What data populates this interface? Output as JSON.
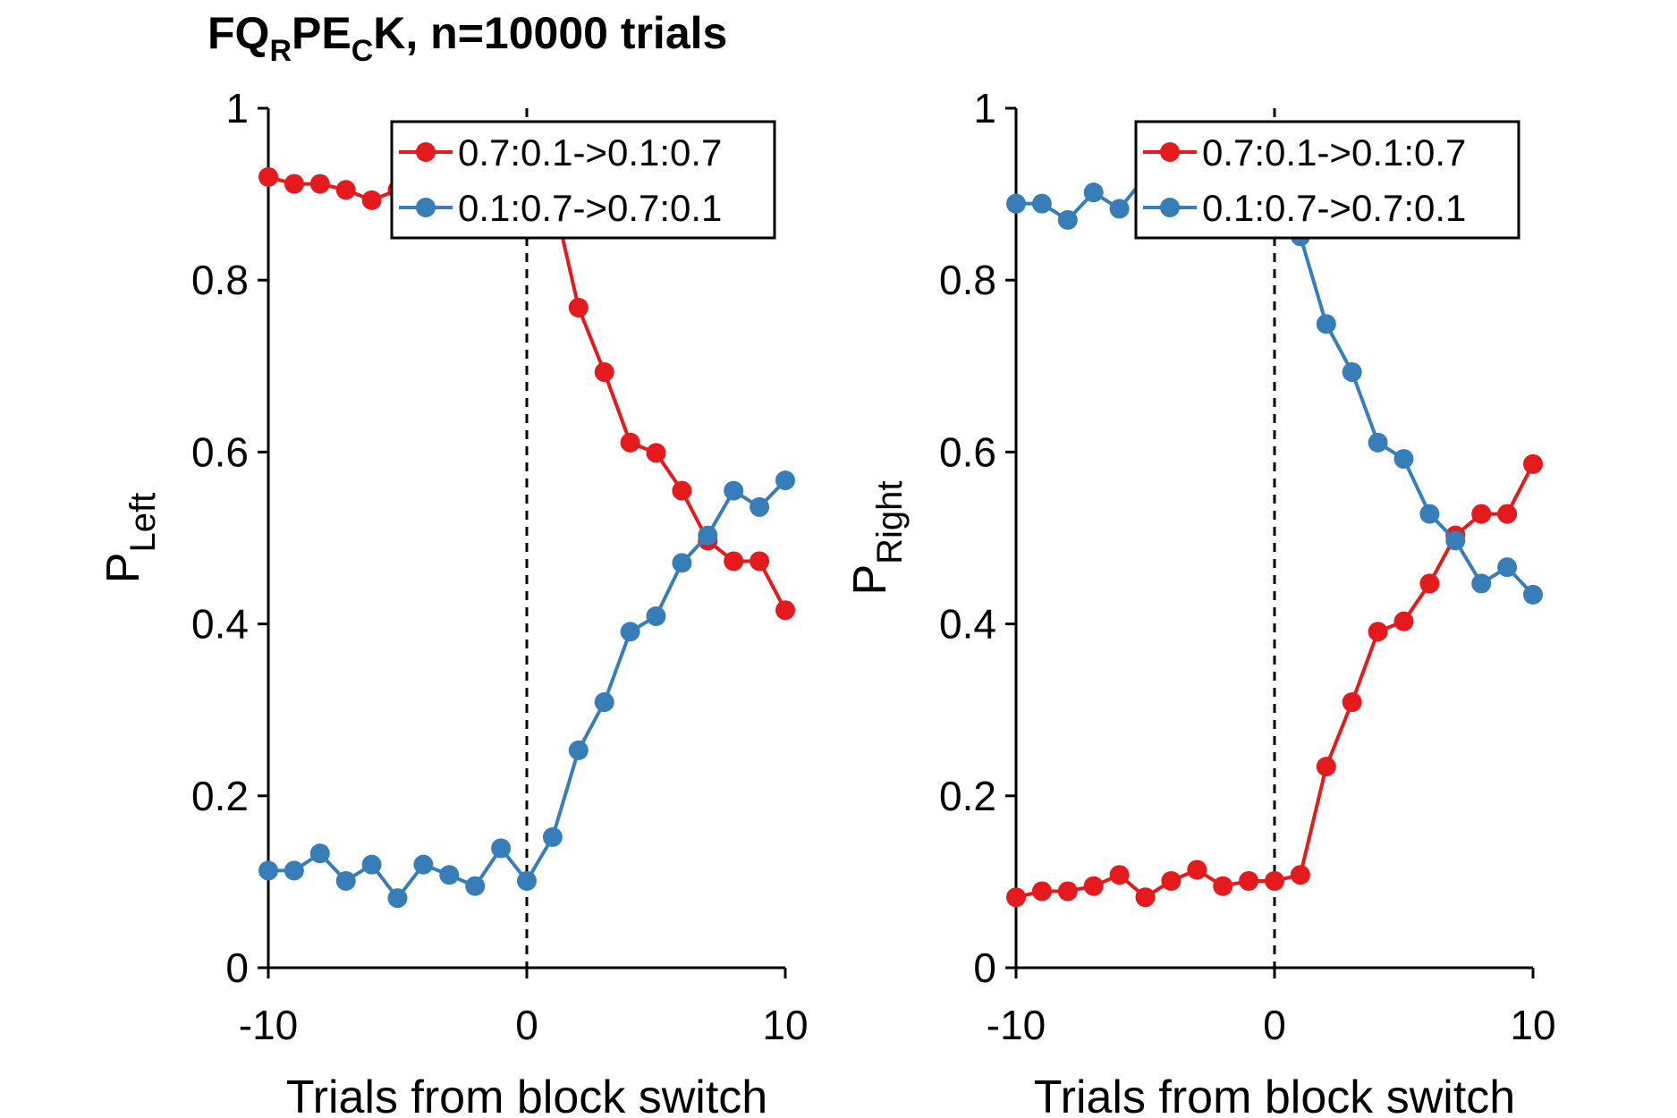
{
  "chart_data": [
    {
      "type": "line",
      "title_parts": [
        "FQ",
        "R",
        "PE",
        "C",
        "K, n=10000 trials"
      ],
      "xlabel": "Trials from block switch",
      "ylabel_main": "P",
      "ylabel_sub": "Left",
      "xlim": [
        -10,
        10
      ],
      "ylim": [
        0,
        1
      ],
      "xticks": [
        "-10",
        "0",
        "10"
      ],
      "yticks": [
        "0",
        "0.2",
        "0.4",
        "0.6",
        "0.8",
        "1"
      ],
      "vline_x": 0,
      "legend_position": "top-right",
      "x": [
        -10,
        -9,
        -8,
        -7,
        -6,
        -5,
        -4,
        -3,
        -2,
        -1,
        0,
        1,
        2,
        3,
        4,
        5,
        6,
        7,
        8,
        9,
        10
      ],
      "series": [
        {
          "name": "0.7:0.1->0.1:0.7",
          "color": "#e41a1c",
          "values": [
            0.92,
            0.912,
            0.912,
            0.905,
            0.893,
            0.905,
            0.9,
            0.9,
            0.9,
            0.9,
            0.9,
            0.9,
            0.768,
            0.693,
            0.611,
            0.599,
            0.555,
            0.497,
            0.473,
            0.473,
            0.416
          ]
        },
        {
          "name": "0.1:0.7->0.7:0.1",
          "color": "#377eb8",
          "values": [
            0.113,
            0.113,
            0.133,
            0.101,
            0.12,
            0.081,
            0.12,
            0.108,
            0.095,
            0.139,
            0.101,
            0.152,
            0.253,
            0.309,
            0.391,
            0.409,
            0.471,
            0.503,
            0.555,
            0.536,
            0.567
          ]
        }
      ]
    },
    {
      "type": "line",
      "xlabel": "Trials from block switch",
      "ylabel_main": "P",
      "ylabel_sub": "Right",
      "xlim": [
        -10,
        10
      ],
      "ylim": [
        0,
        1
      ],
      "xticks": [
        "-10",
        "0",
        "10"
      ],
      "yticks": [
        "0",
        "0.2",
        "0.4",
        "0.6",
        "0.8",
        "1"
      ],
      "vline_x": 0,
      "legend_position": "top-right",
      "x": [
        -10,
        -9,
        -8,
        -7,
        -6,
        -5,
        -4,
        -3,
        -2,
        -1,
        0,
        1,
        2,
        3,
        4,
        5,
        6,
        7,
        8,
        9,
        10
      ],
      "series": [
        {
          "name": "0.7:0.1->0.1:0.7",
          "color": "#e41a1c",
          "values": [
            0.082,
            0.089,
            0.089,
            0.095,
            0.108,
            0.082,
            0.101,
            0.114,
            0.095,
            0.101,
            0.101,
            0.108,
            0.234,
            0.309,
            0.391,
            0.403,
            0.447,
            0.503,
            0.528,
            0.528,
            0.586
          ]
        },
        {
          "name": "0.1:0.7->0.7:0.1",
          "color": "#377eb8",
          "values": [
            0.889,
            0.889,
            0.87,
            0.902,
            0.883,
            0.92,
            0.92,
            0.92,
            0.92,
            0.92,
            0.92,
            0.851,
            0.749,
            0.693,
            0.611,
            0.592,
            0.528,
            0.497,
            0.447,
            0.466,
            0.434
          ]
        }
      ]
    }
  ]
}
